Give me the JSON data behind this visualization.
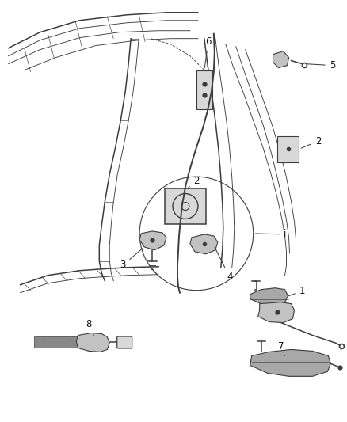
{
  "bg_color": "#ffffff",
  "lc": "#3d3d3d",
  "lw1": 1.1,
  "lw2": 0.65,
  "lw3": 0.45,
  "fs": 8.5,
  "figsize": [
    4.38,
    5.33
  ],
  "dpi": 100,
  "gray1": "#c2c2c2",
  "gray2": "#d8d8d8",
  "gray3": "#a8a8a8",
  "gray4": "#888888"
}
